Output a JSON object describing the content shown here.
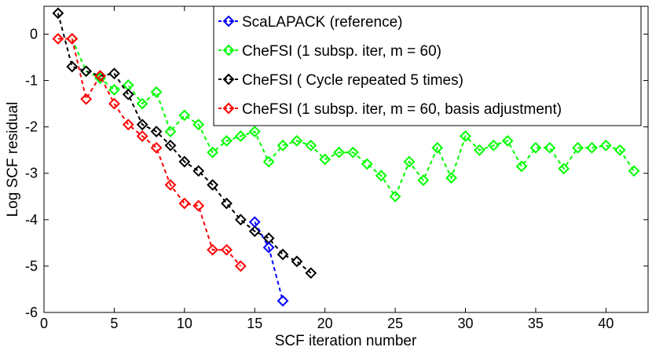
{
  "chart_data": {
    "type": "line",
    "title": "",
    "xlabel": "SCF iteration number",
    "ylabel": "Log SCF residual",
    "xlim": [
      0,
      43
    ],
    "ylim": [
      -6,
      0.6
    ],
    "xticks": [
      0,
      5,
      10,
      15,
      20,
      25,
      30,
      35,
      40
    ],
    "yticks": [
      0,
      -1,
      -2,
      -3,
      -4,
      -5,
      -6
    ],
    "grid": false,
    "legend_position": "top-right",
    "series": [
      {
        "name": "ScaLAPACK (reference)",
        "color": "#0000ff",
        "marker": "diamond",
        "x": [
          15,
          16,
          17
        ],
        "y": [
          -4.05,
          -4.6,
          -5.75
        ]
      },
      {
        "name": "CheFSI (1 subsp. iter, m = 60)",
        "color": "#00ff00",
        "marker": "diamond",
        "x": [
          2,
          3,
          4,
          5,
          6,
          7,
          8,
          9,
          10,
          11,
          12,
          13,
          14,
          15,
          16,
          17,
          18,
          19,
          20,
          21,
          22,
          23,
          24,
          25,
          26,
          27,
          28,
          29,
          30,
          31,
          32,
          33,
          34,
          35,
          36,
          37,
          38,
          39,
          40,
          41,
          42
        ],
        "y": [
          -0.1,
          -0.8,
          -0.95,
          -1.2,
          -1.1,
          -1.5,
          -1.25,
          -2.1,
          -1.75,
          -1.95,
          -2.55,
          -2.3,
          -2.2,
          -2.1,
          -2.75,
          -2.4,
          -2.3,
          -2.4,
          -2.7,
          -2.55,
          -2.55,
          -2.8,
          -3.05,
          -3.5,
          -2.75,
          -3.15,
          -2.45,
          -3.1,
          -2.2,
          -2.5,
          -2.4,
          -2.3,
          -2.85,
          -2.45,
          -2.45,
          -2.9,
          -2.45,
          -2.45,
          -2.4,
          -2.5,
          -2.95
        ]
      },
      {
        "name": "CheFSI ( Cycle repeated 5 times)",
        "color": "#000000",
        "marker": "diamond",
        "x": [
          1,
          2,
          3,
          4,
          5,
          6,
          7,
          8,
          9,
          10,
          11,
          12,
          13,
          14,
          15,
          16,
          17,
          18,
          19
        ],
        "y": [
          0.45,
          -0.7,
          -0.8,
          -0.9,
          -0.85,
          -1.3,
          -1.95,
          -2.1,
          -2.4,
          -2.75,
          -2.95,
          -3.25,
          -3.65,
          -4.0,
          -4.25,
          -4.4,
          -4.75,
          -4.9,
          -5.15
        ]
      },
      {
        "name": "CheFSI (1 subsp. iter, m = 60, basis adjustment)",
        "color": "#ff0000",
        "marker": "diamond",
        "x": [
          1,
          2,
          3,
          4,
          5,
          6,
          7,
          8,
          9,
          10,
          11,
          12,
          13,
          14
        ],
        "y": [
          -0.1,
          -0.1,
          -1.4,
          -0.9,
          -1.5,
          -1.95,
          -2.2,
          -2.45,
          -3.25,
          -3.65,
          -3.7,
          -4.65,
          -4.65,
          -5.0
        ]
      }
    ]
  }
}
